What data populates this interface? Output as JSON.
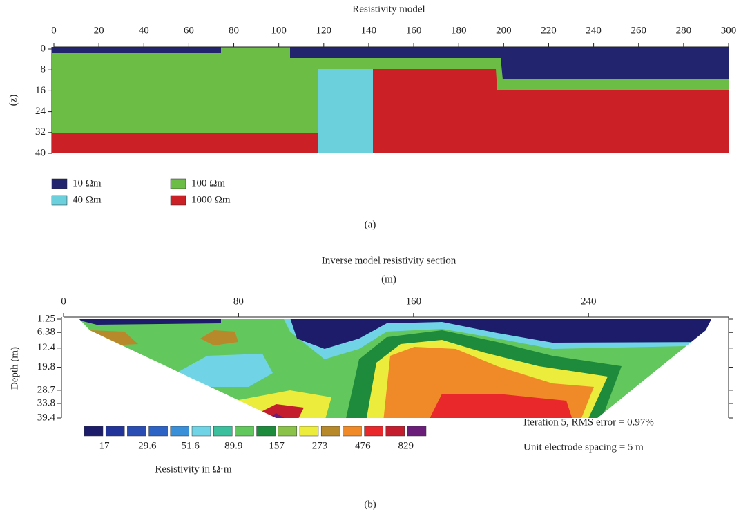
{
  "panel_a": {
    "title": "Resistivity model",
    "y_label": "(z)",
    "xlim": [
      0,
      300
    ],
    "xticks": [
      0,
      20,
      40,
      60,
      80,
      100,
      120,
      140,
      160,
      180,
      200,
      220,
      240,
      260,
      280,
      300
    ],
    "ylim": [
      0,
      40
    ],
    "yticks": [
      0,
      8,
      16,
      24,
      32,
      40
    ],
    "legend": [
      {
        "label": "10 Ωm",
        "color": "#23246e"
      },
      {
        "label": "40 Ωm",
        "color": "#6cd0dc"
      },
      {
        "label": "100 Ωm",
        "color": "#6cbd45"
      },
      {
        "label": "1000 Ωm",
        "color": "#cc2027"
      }
    ],
    "caption": "(a)"
  },
  "panel_b": {
    "title": "Inverse model resistivity section",
    "x_unit": "(m)",
    "y_label": "Depth (m)",
    "xlim": [
      0,
      304
    ],
    "xticks": [
      0,
      80,
      160,
      240
    ],
    "ylim": [
      1.25,
      39.4
    ],
    "yticks": [
      1.25,
      6.38,
      12.4,
      19.8,
      28.7,
      33.8,
      39.4
    ],
    "colorbar_colors": [
      "#1c1c6a",
      "#22349a",
      "#2a4db3",
      "#2e63c6",
      "#3a90d8",
      "#70d4e6",
      "#3cbf9c",
      "#62c75c",
      "#1e8a3c",
      "#8bc34a",
      "#ecec3c",
      "#b8892a",
      "#f08a28",
      "#e8282a",
      "#c41e2e",
      "#6a1e7a"
    ],
    "colorbar_labels": [
      17,
      29.6,
      51.6,
      89.9,
      157,
      273,
      476,
      829
    ],
    "colorbar_title": "Resistivity in Ω·m",
    "notes": [
      "Iteration 5, RMS error = 0.97%",
      "Unit electrode spacing = 5 m"
    ],
    "caption": "(b)"
  }
}
